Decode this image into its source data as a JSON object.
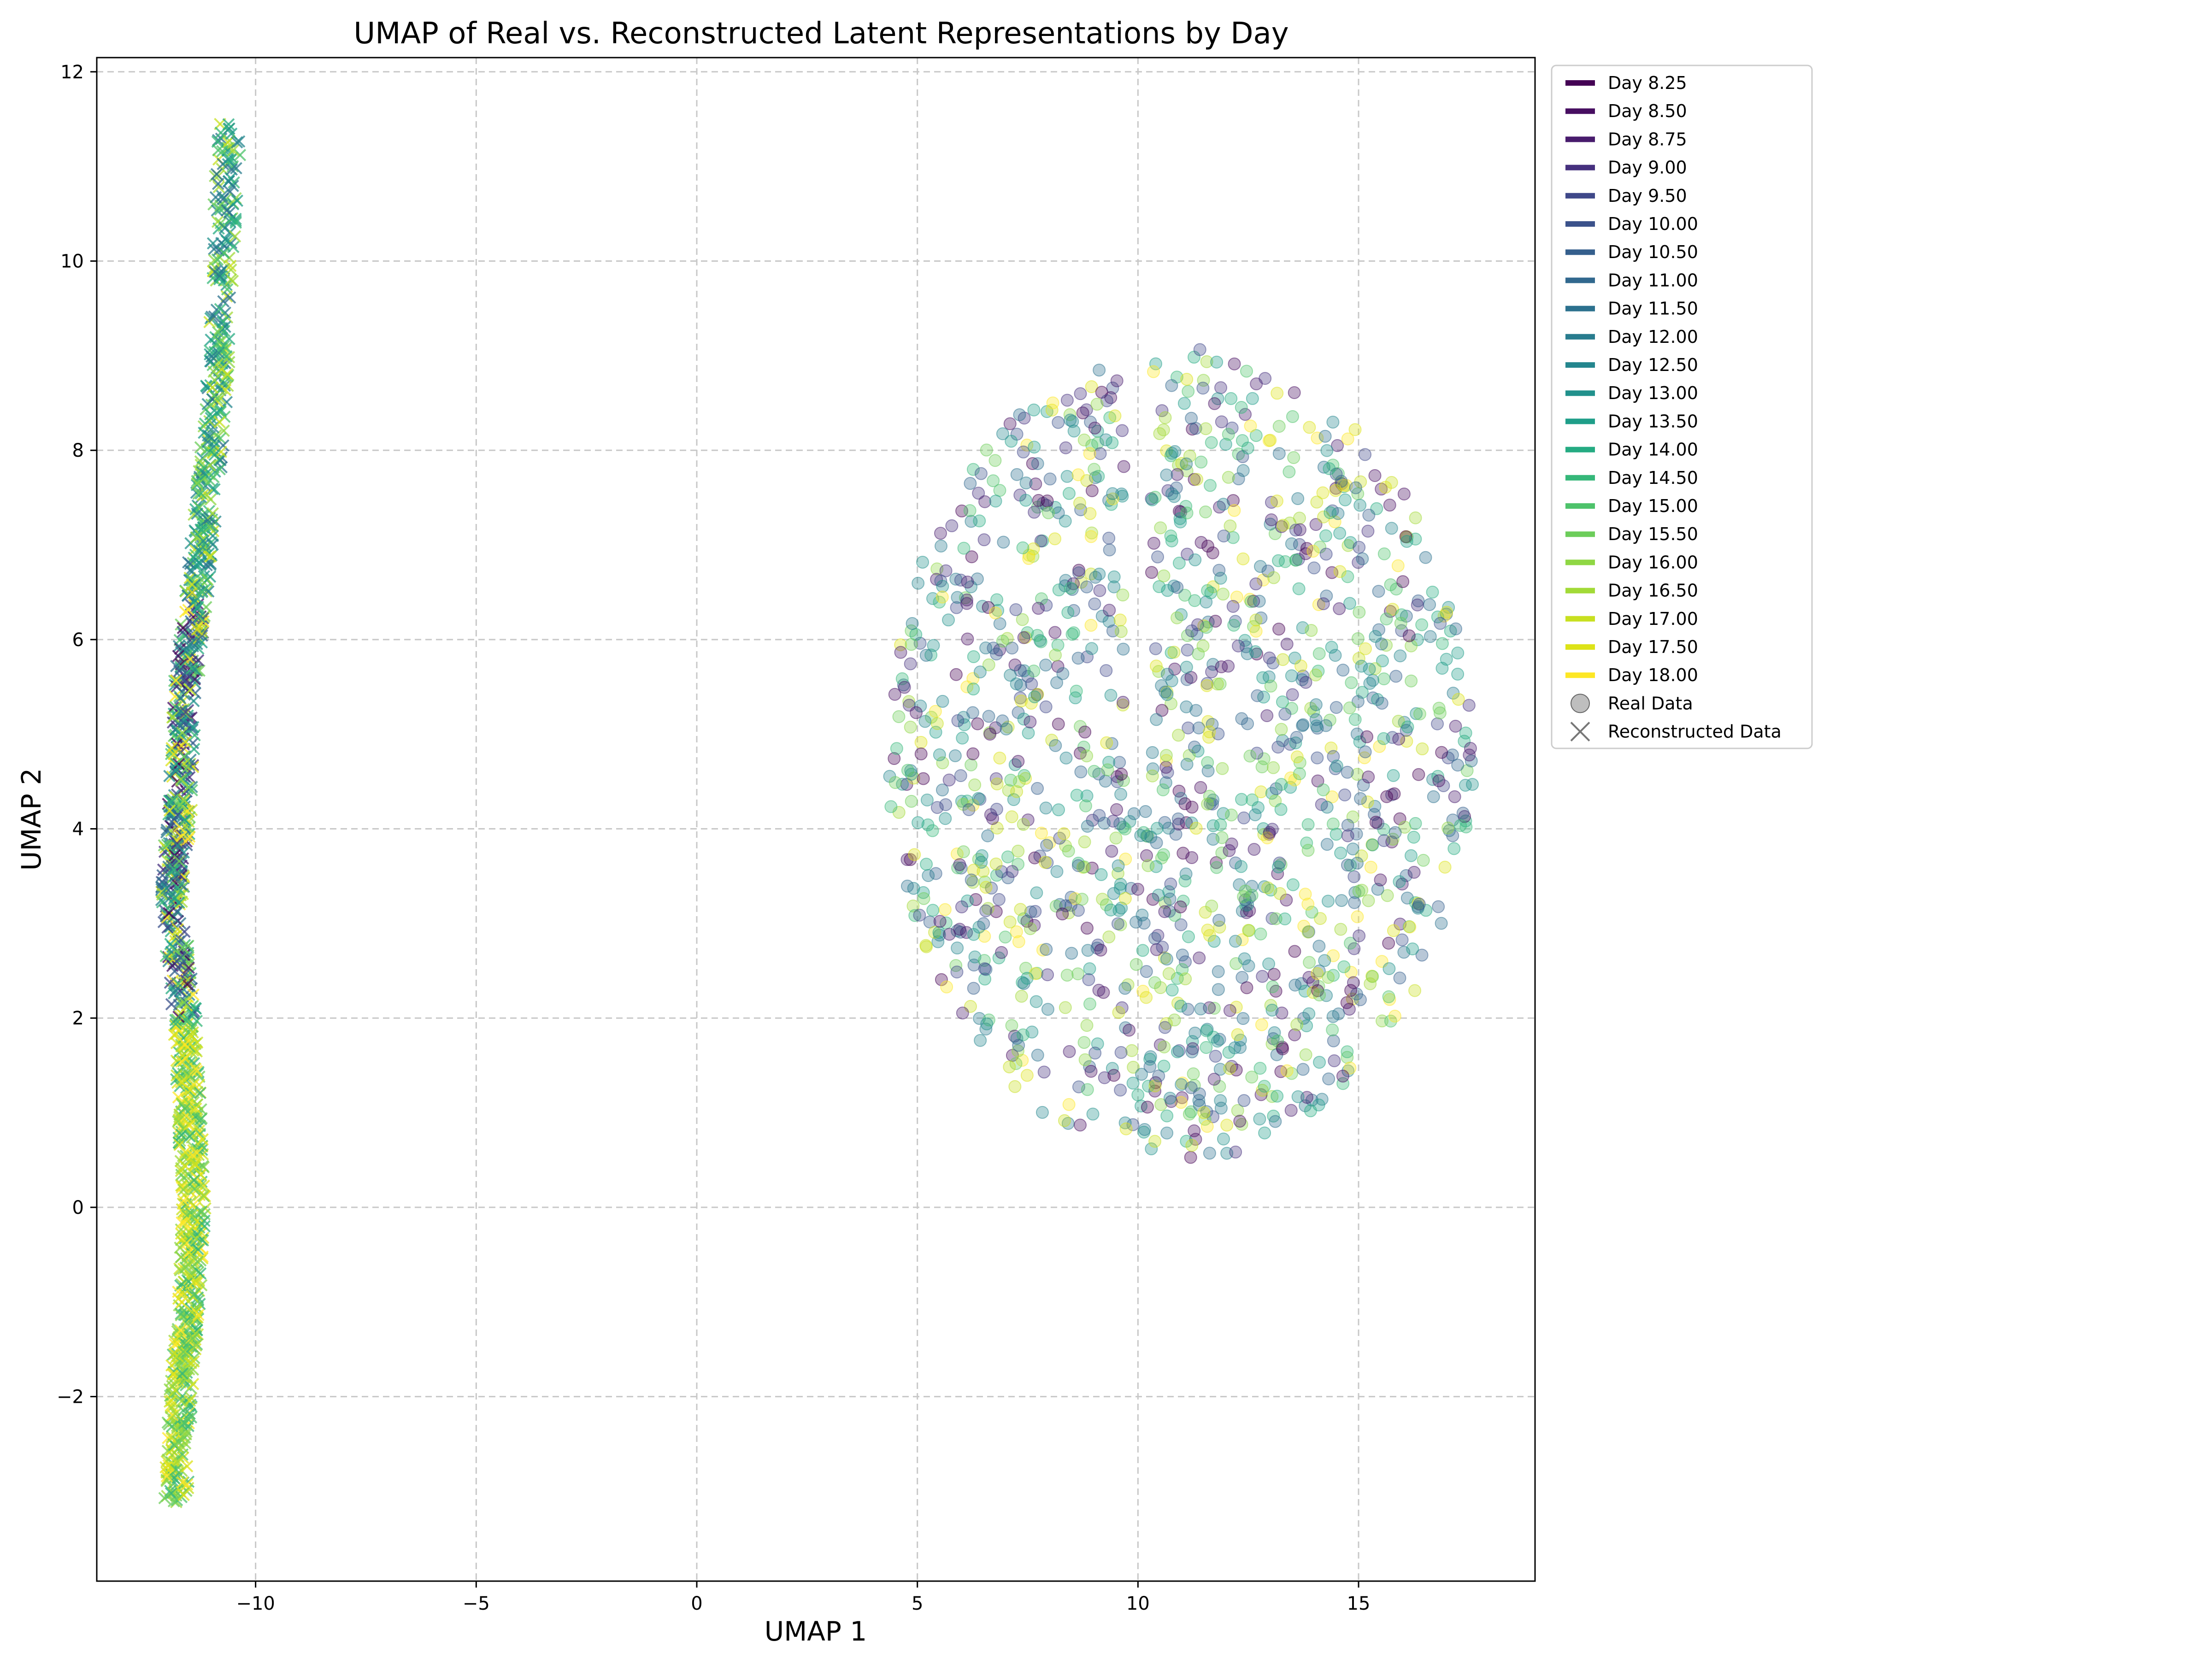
{
  "chart_data": {
    "type": "scatter",
    "title": "UMAP of Real vs. Reconstructed Latent Representations by Day",
    "xlabel": "UMAP 1",
    "ylabel": "UMAP 2",
    "xlim": [
      -13.6,
      19.0
    ],
    "ylim": [
      -3.95,
      12.15
    ],
    "xticks": [
      -10,
      -5,
      0,
      5,
      10,
      15
    ],
    "xtick_labels": [
      "−10",
      "−5",
      "0",
      "5",
      "10",
      "15"
    ],
    "yticks": [
      -2,
      0,
      2,
      4,
      6,
      8,
      10,
      12
    ],
    "ytick_labels": [
      "−2",
      "0",
      "2",
      "4",
      "6",
      "8",
      "10",
      "12"
    ],
    "grid": true,
    "legend_position": "outside-right-top",
    "days": [
      {
        "label": "Day 8.25",
        "color": "#440154"
      },
      {
        "label": "Day 8.50",
        "color": "#470e61"
      },
      {
        "label": "Day 8.75",
        "color": "#481b6d"
      },
      {
        "label": "Day 9.00",
        "color": "#46307e"
      },
      {
        "label": "Day 9.50",
        "color": "#3f4889"
      },
      {
        "label": "Day 10.00",
        "color": "#3b528b"
      },
      {
        "label": "Day 10.50",
        "color": "#355f8d"
      },
      {
        "label": "Day 11.00",
        "color": "#31688e"
      },
      {
        "label": "Day 11.50",
        "color": "#2c718e"
      },
      {
        "label": "Day 12.00",
        "color": "#287c8e"
      },
      {
        "label": "Day 12.50",
        "color": "#24868e"
      },
      {
        "label": "Day 13.00",
        "color": "#21918c"
      },
      {
        "label": "Day 13.50",
        "color": "#1f9e89"
      },
      {
        "label": "Day 14.00",
        "color": "#25ab82"
      },
      {
        "label": "Day 14.50",
        "color": "#35b779"
      },
      {
        "label": "Day 15.00",
        "color": "#4ec36b"
      },
      {
        "label": "Day 15.50",
        "color": "#6ccd5a"
      },
      {
        "label": "Day 16.00",
        "color": "#8fd744"
      },
      {
        "label": "Day 16.50",
        "color": "#a2da37"
      },
      {
        "label": "Day 17.00",
        "color": "#c8e020"
      },
      {
        "label": "Day 17.50",
        "color": "#dde318"
      },
      {
        "label": "Day 18.00",
        "color": "#fde725"
      }
    ],
    "marker_legend": [
      {
        "label": "Real Data",
        "marker": "circle"
      },
      {
        "label": "Reconstructed Data",
        "marker": "x"
      }
    ],
    "series": [
      {
        "marker": "x",
        "cluster_path": [
          {
            "x": -11.8,
            "y": -3.1
          },
          {
            "x": -11.7,
            "y": -2.0
          },
          {
            "x": -11.5,
            "y": -1.0
          },
          {
            "x": -11.4,
            "y": 0.0
          },
          {
            "x": -11.5,
            "y": 1.0
          },
          {
            "x": -11.6,
            "y": 2.0
          },
          {
            "x": -11.9,
            "y": 3.3
          },
          {
            "x": -11.7,
            "y": 4.3
          },
          {
            "x": -11.6,
            "y": 5.5
          },
          {
            "x": -11.3,
            "y": 6.6
          },
          {
            "x": -11.0,
            "y": 8.0
          },
          {
            "x": -10.8,
            "y": 9.5
          },
          {
            "x": -10.6,
            "y": 11.4
          }
        ]
      },
      {
        "marker": "circle",
        "cluster_extent": {
          "x": [
            4.3,
            17.6
          ],
          "y": [
            0.5,
            9.1
          ]
        }
      }
    ]
  }
}
